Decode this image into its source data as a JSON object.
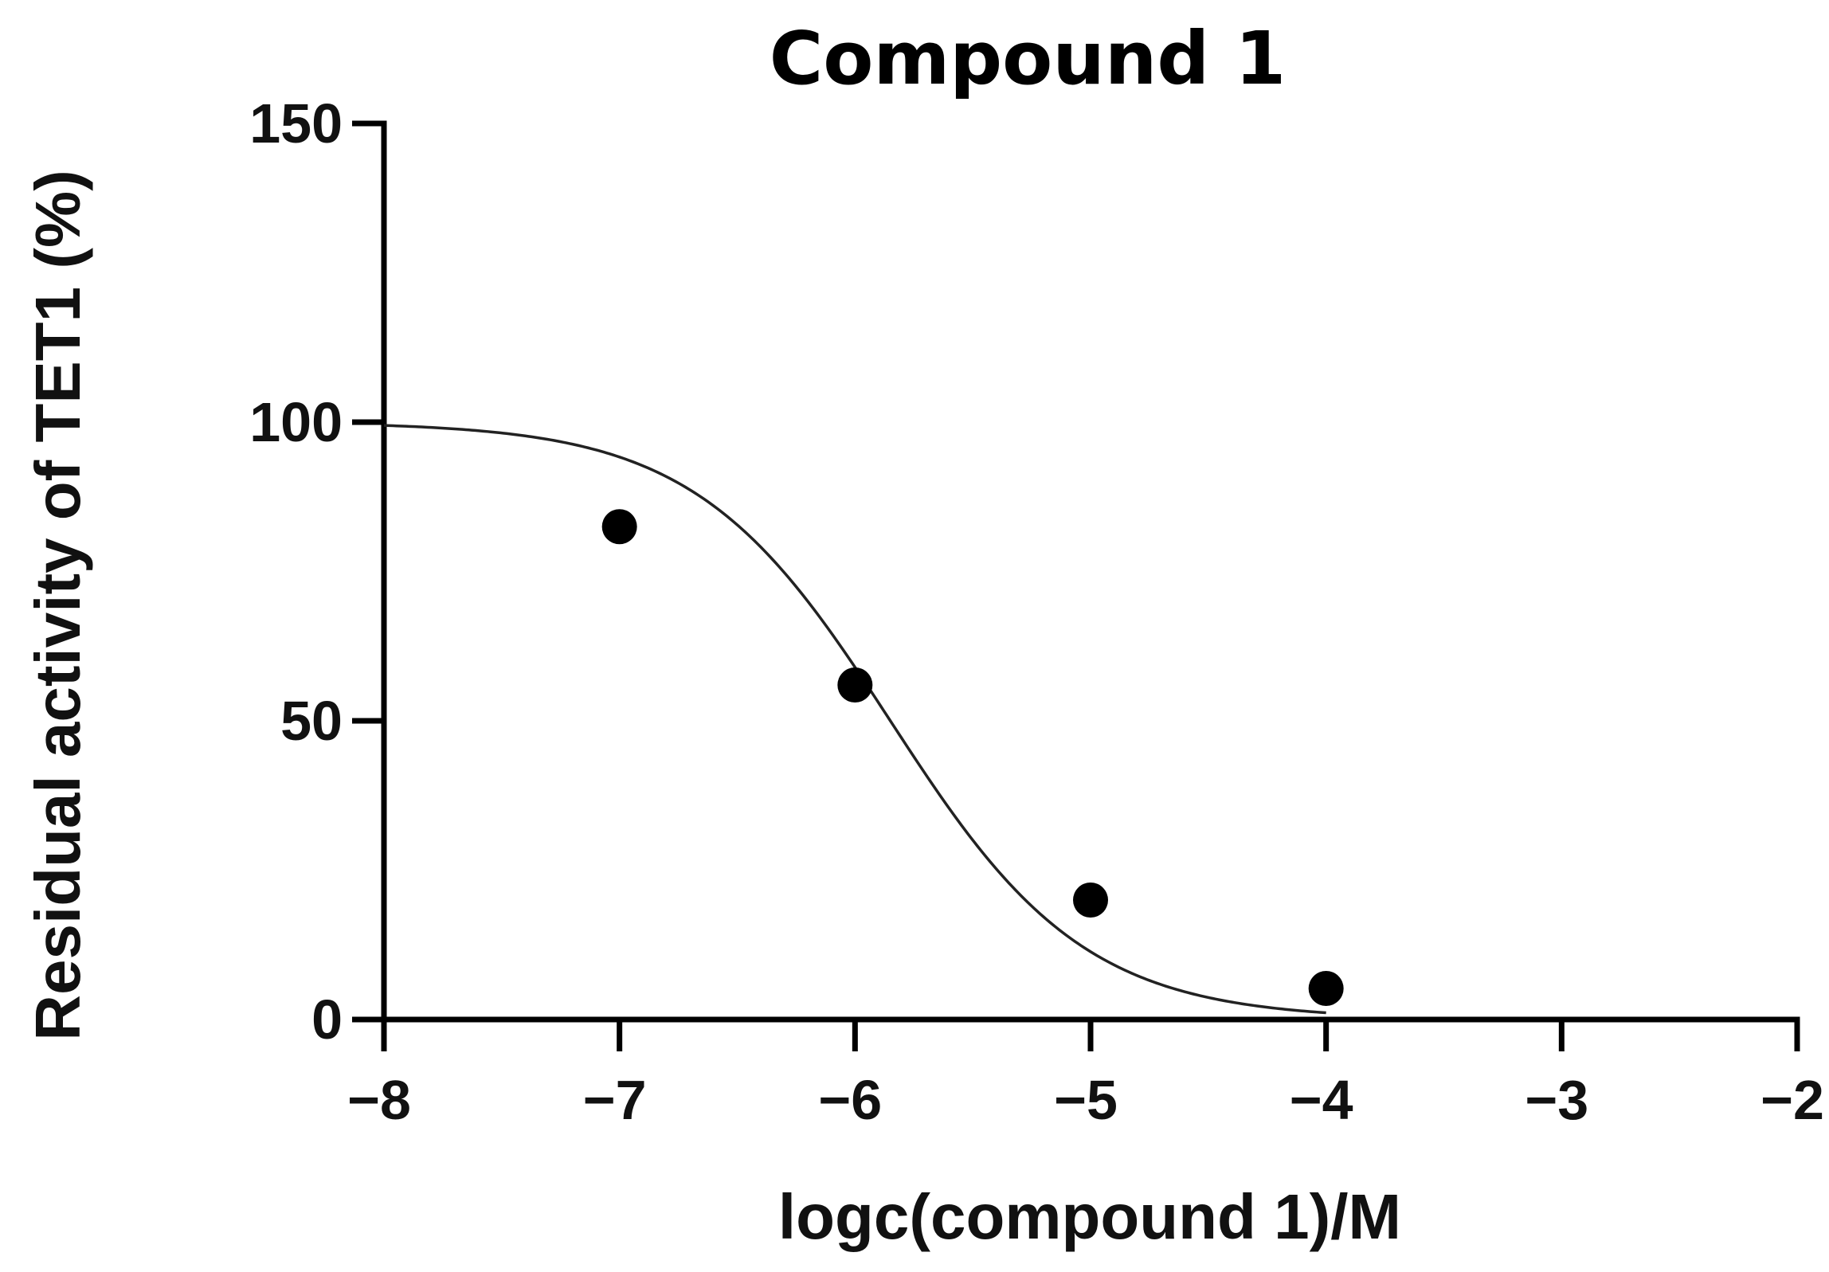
{
  "chart_data": {
    "type": "scatter",
    "title": "Compound 1",
    "xlabel": "logc(compound 1)/M",
    "ylabel": "Residual activity of TET1 (%)",
    "xlim": [
      -8,
      -2
    ],
    "ylim": [
      0,
      150
    ],
    "x_ticks": [
      -8,
      -7,
      -6,
      -5,
      -4,
      -3,
      -2
    ],
    "x_tick_labels": [
      "−8",
      "−7",
      "−6",
      "−5",
      "−4",
      "−3",
      "−2"
    ],
    "y_ticks": [
      0,
      50,
      100,
      150
    ],
    "y_tick_labels": [
      "0",
      "50",
      "100",
      "150"
    ],
    "grid": false,
    "points": {
      "x": [
        -7,
        -6,
        -5,
        -4
      ],
      "y": [
        82.5,
        56,
        20,
        5.2
      ]
    },
    "fit": {
      "model": "sigmoidal dose-response",
      "top": 100,
      "bottom": 0,
      "log_ic50": -5.85,
      "hill_slope": -1.05
    },
    "colors": {
      "points": "#000000",
      "curve": "#222222",
      "axes": "#000000"
    }
  }
}
